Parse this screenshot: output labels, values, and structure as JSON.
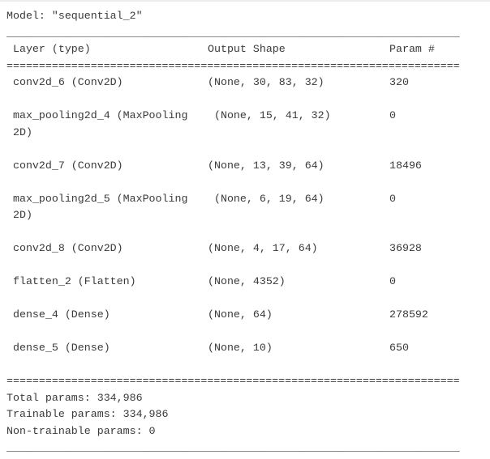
{
  "model_header": "Model: \"sequential_2\"",
  "dividers": {
    "underscore": "______________________________________________________________________",
    "equals": "======================================================================"
  },
  "table": {
    "headers": {
      "layer": " Layer (type)",
      "output_shape": "Output Shape",
      "param": "Param #"
    },
    "rows": [
      {
        "layer": " conv2d_6 (Conv2D)",
        "output_shape": "(None, 30, 83, 32)",
        "param": "320"
      },
      {
        "layer": " max_pooling2d_4 (MaxPooling\n 2D)",
        "output_shape": " (None, 15, 41, 32)",
        "param": "0"
      },
      {
        "layer": " conv2d_7 (Conv2D)",
        "output_shape": "(None, 13, 39, 64)",
        "param": "18496"
      },
      {
        "layer": " max_pooling2d_5 (MaxPooling\n 2D)",
        "output_shape": " (None, 6, 19, 64)",
        "param": "0"
      },
      {
        "layer": " conv2d_8 (Conv2D)",
        "output_shape": "(None, 4, 17, 64)",
        "param": "36928"
      },
      {
        "layer": " flatten_2 (Flatten)",
        "output_shape": "(None, 4352)",
        "param": "0"
      },
      {
        "layer": " dense_4 (Dense)",
        "output_shape": "(None, 64)",
        "param": "278592"
      },
      {
        "layer": " dense_5 (Dense)",
        "output_shape": "(None, 10)",
        "param": "650"
      }
    ]
  },
  "totals": {
    "total": "Total params: 334,986",
    "trainable": "Trainable params: 334,986",
    "non_trainable": "Non-trainable params: 0"
  }
}
